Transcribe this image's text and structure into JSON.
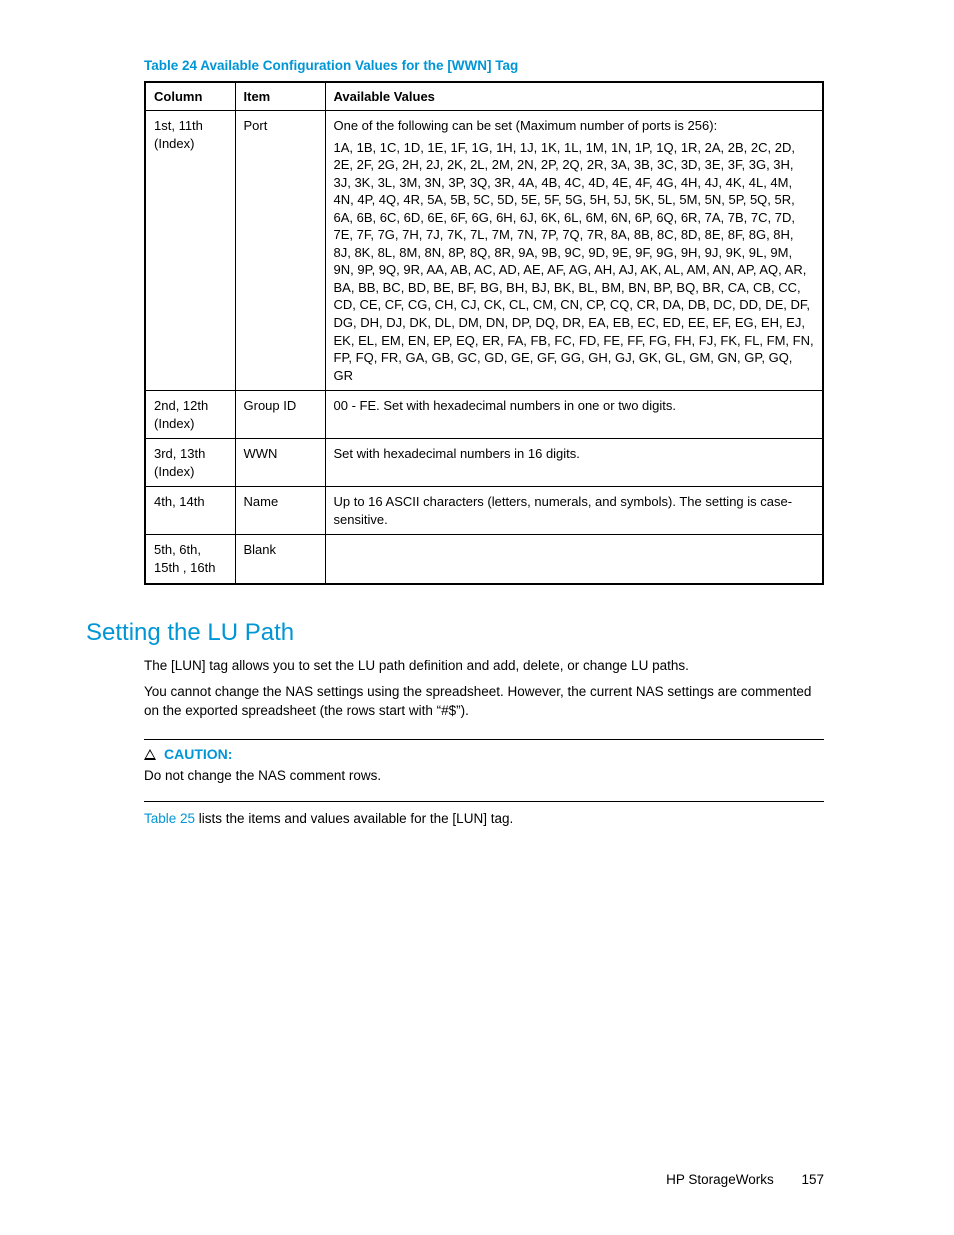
{
  "table": {
    "caption": "Table 24 Available Configuration Values for the [WWN] Tag",
    "headers": [
      "Column",
      "Item",
      "Available Values"
    ],
    "rows": [
      {
        "column": "1st, 11th (Index)",
        "item": "Port",
        "values_intro": "One of the following can be set (Maximum number of ports is 256):",
        "values": "1A, 1B, 1C, 1D, 1E, 1F, 1G, 1H, 1J, 1K, 1L, 1M, 1N, 1P, 1Q, 1R, 2A, 2B, 2C, 2D, 2E, 2F, 2G, 2H, 2J, 2K, 2L, 2M, 2N, 2P, 2Q, 2R, 3A, 3B, 3C, 3D, 3E, 3F, 3G, 3H, 3J, 3K, 3L, 3M, 3N, 3P, 3Q, 3R, 4A, 4B, 4C, 4D, 4E, 4F, 4G, 4H, 4J, 4K, 4L, 4M, 4N, 4P, 4Q, 4R, 5A, 5B, 5C, 5D, 5E, 5F, 5G, 5H, 5J, 5K, 5L, 5M, 5N, 5P, 5Q, 5R, 6A, 6B, 6C, 6D, 6E, 6F, 6G, 6H, 6J, 6K, 6L, 6M, 6N, 6P, 6Q, 6R, 7A, 7B, 7C, 7D, 7E, 7F, 7G, 7H, 7J, 7K, 7L, 7M, 7N, 7P, 7Q, 7R, 8A, 8B, 8C, 8D, 8E, 8F, 8G, 8H, 8J, 8K, 8L, 8M, 8N, 8P, 8Q, 8R, 9A, 9B, 9C, 9D, 9E, 9F, 9G, 9H, 9J, 9K, 9L, 9M, 9N, 9P, 9Q, 9R, AA, AB, AC, AD, AE, AF, AG, AH, AJ, AK, AL, AM, AN, AP, AQ, AR, BA, BB, BC, BD, BE, BF, BG, BH, BJ, BK, BL, BM, BN, BP, BQ, BR, CA, CB, CC, CD, CE, CF, CG, CH, CJ, CK, CL, CM, CN, CP, CQ, CR, DA, DB, DC, DD, DE, DF, DG, DH, DJ, DK, DL, DM, DN, DP, DQ, DR, EA, EB, EC, ED, EE, EF, EG, EH, EJ, EK, EL, EM, EN, EP, EQ, ER, FA, FB, FC, FD, FE, FF, FG, FH, FJ, FK, FL, FM, FN, FP, FQ, FR, GA, GB, GC, GD, GE, GF, GG, GH, GJ, GK, GL, GM, GN, GP, GQ, GR"
      },
      {
        "column": "2nd, 12th (Index)",
        "item": "Group ID",
        "values": "00 - FE. Set with hexadecimal numbers in one or two digits."
      },
      {
        "column": "3rd, 13th (Index)",
        "item": "WWN",
        "values": "Set with hexadecimal numbers in 16 digits."
      },
      {
        "column": "4th, 14th",
        "item": "Name",
        "values": "Up to 16 ASCII characters (letters, numerals, and symbols). The setting is case-sensitive."
      },
      {
        "column": "5th, 6th, 15th , 16th",
        "item": "Blank",
        "values": ""
      }
    ]
  },
  "section": {
    "heading": "Setting the LU Path",
    "p1": "The [LUN] tag allows you to set the LU path definition and add, delete, or change LU paths.",
    "p2": "You cannot change the NAS settings using the spreadsheet. However, the current NAS settings are commented on the exported spreadsheet (the rows start with “#$”).",
    "caution_label": "CAUTION:",
    "caution_text": "Do not change the NAS comment rows.",
    "ref_link": "Table 25",
    "ref_text": " lists the items and values available for the [LUN] tag."
  },
  "footer": {
    "text": "HP StorageWorks",
    "page": "157"
  },
  "colors": {
    "accent": "#0096d6",
    "text": "#000000",
    "background": "#ffffff"
  }
}
